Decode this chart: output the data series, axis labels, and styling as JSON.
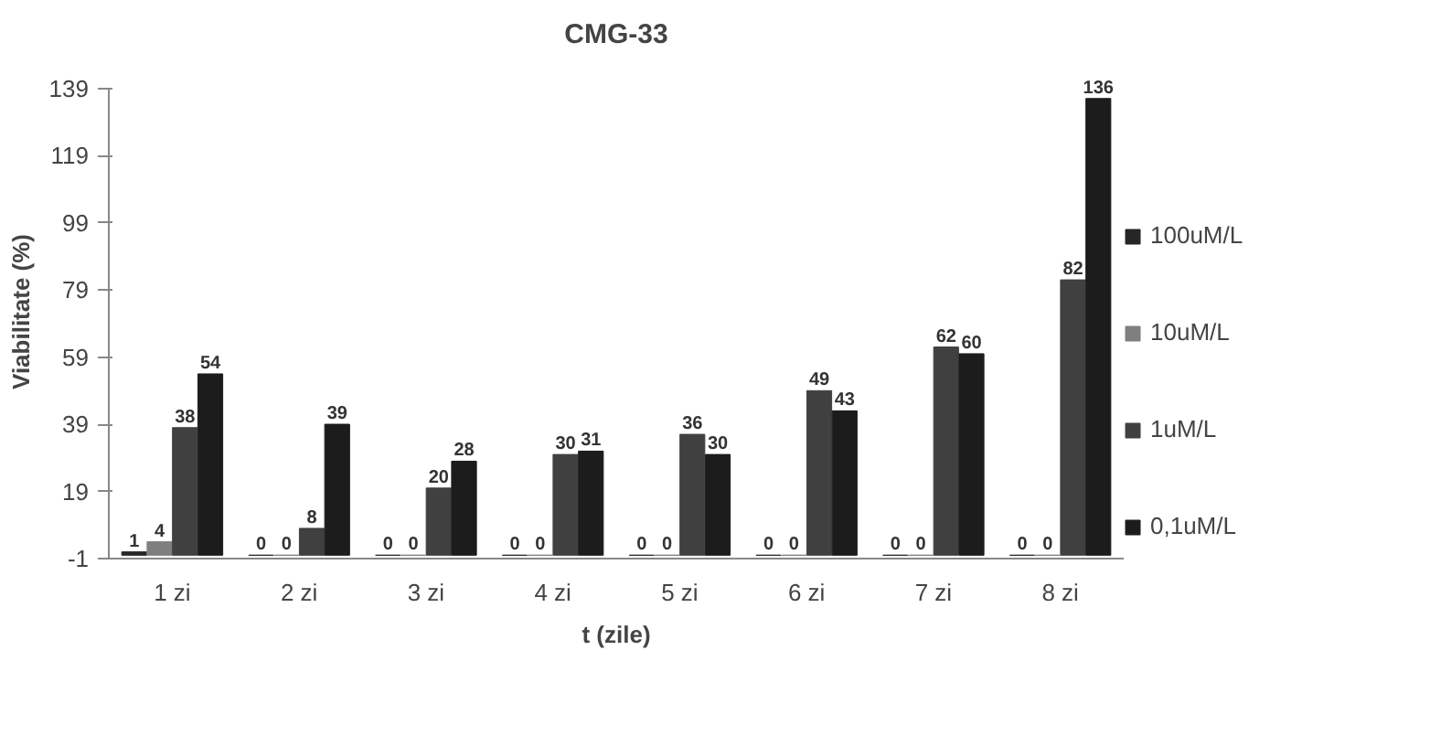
{
  "chart_data": {
    "type": "bar",
    "title": "CMG-33",
    "xlabel": "t (zile)",
    "ylabel": "Viabilitate (%)",
    "categories": [
      "1 zi",
      "2 zi",
      "3 zi",
      "4 zi",
      "5 zi",
      "6 zi",
      "7 zi",
      "8 zi"
    ],
    "series": [
      {
        "name": "100uM/L",
        "color": "#262626",
        "values": [
          1,
          0,
          0,
          0,
          0,
          0,
          0,
          0
        ]
      },
      {
        "name": "10uM/L",
        "color": "#7f7f7f",
        "values": [
          4,
          0,
          0,
          0,
          0,
          0,
          0,
          0
        ]
      },
      {
        "name": "1uM/L",
        "color": "#404040",
        "values": [
          38,
          8,
          20,
          30,
          36,
          49,
          62,
          82
        ]
      },
      {
        "name": "0,1uM/L",
        "color": "#1c1c1c",
        "values": [
          54,
          39,
          28,
          31,
          30,
          43,
          60,
          136
        ]
      }
    ],
    "ylim": [
      -1,
      139
    ],
    "yticks": [
      -1,
      19,
      39,
      59,
      79,
      99,
      119,
      139
    ],
    "data_labels": true,
    "grid": false,
    "legend": "right"
  }
}
